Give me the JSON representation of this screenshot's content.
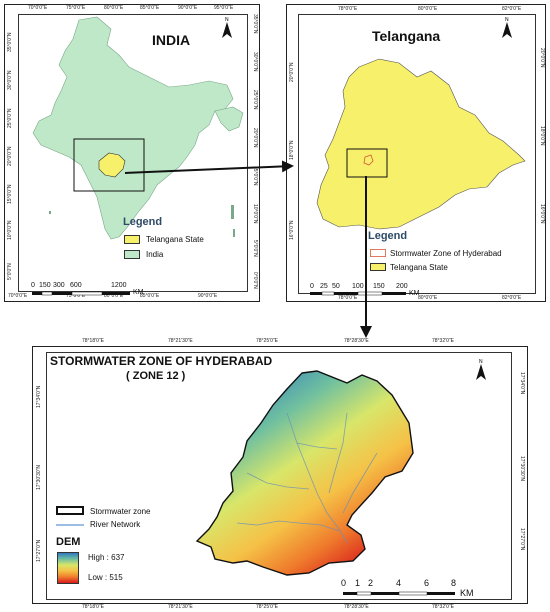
{
  "india_panel": {
    "title": "INDIA",
    "top_ticks": [
      "70°0'0\"E",
      "75°0'0\"E",
      "80°0'0\"E",
      "85°0'0\"E",
      "90°0'0\"E",
      "95°0'0\"E"
    ],
    "bottom_ticks": [
      "70°0'0\"E",
      "75°0'0\"E",
      "80°0'0\"E",
      "85°0'0\"E",
      "90°0'0\"E"
    ],
    "left_ticks": [
      "35°0'0\"N",
      "30°0'0\"N",
      "25°0'0\"N",
      "20°0'0\"N",
      "15°0'0\"N",
      "10°0'0\"N",
      "5°0'0\"N"
    ],
    "right_ticks": [
      "35°0'0\"N",
      "30°0'0\"N",
      "25°0'0\"N",
      "20°0'0\"N",
      "15°0'0\"N",
      "10°0'0\"N",
      "5°0'0\"N",
      "0°0'0\"N"
    ],
    "north": "N",
    "legend": {
      "title": "Legend",
      "items": [
        {
          "label": "Telangana State",
          "color": "#f7f06a"
        },
        {
          "label": "India",
          "color": "#bfe8c8"
        }
      ]
    },
    "scale": {
      "labels": [
        "0",
        "150",
        "300",
        "600",
        "1200"
      ],
      "unit": "KM"
    }
  },
  "telangana_panel": {
    "title": "Telangana",
    "top_ticks": [
      "78°0'0\"E",
      "80°0'0\"E",
      "82°0'0\"E"
    ],
    "bottom_ticks": [
      "78°0'0\"E",
      "80°0'0\"E",
      "82°0'0\"E"
    ],
    "left_ticks": [
      "20°0'0\"N",
      "18°0'0\"N",
      "16°0'0\"N"
    ],
    "right_ticks": [
      "20°0'0\"N",
      "18°0'0\"N",
      "16°0'0\"N"
    ],
    "north": "N",
    "legend": {
      "title": "Legend",
      "items": [
        {
          "label": "Stormwater Zone of Hyderabad",
          "color": "#ffffff",
          "border": "#e07a5f"
        },
        {
          "label": "Telangana State",
          "color": "#f7f06a"
        }
      ]
    },
    "scale": {
      "labels": [
        "0",
        "25",
        "50",
        "100",
        "150",
        "200"
      ],
      "unit": "KM"
    }
  },
  "zone_panel": {
    "title": "STORMWATER ZONE OF HYDERABAD",
    "subtitle": "( ZONE 12 )",
    "top_ticks": [
      "78°18'0\"E",
      "78°21'30\"E",
      "78°25'0\"E",
      "78°28'30\"E",
      "78°32'0\"E"
    ],
    "bottom_ticks": [
      "78°18'0\"E",
      "78°21'30\"E",
      "78°25'0\"E",
      "78°28'30\"E",
      "78°32'0\"E"
    ],
    "left_ticks": [
      "17°34'0\"N",
      "17°30'30\"N",
      "17°27'0\"N"
    ],
    "right_ticks": [
      "17°34'0\"N",
      "17°30'30\"N",
      "17°27'0\"N"
    ],
    "north": "N",
    "legend": {
      "zone_label": "Stormwater zone",
      "river_label": "River Network",
      "dem_title": "DEM",
      "high": "High : 637",
      "low": "Low : 515",
      "river_color": "#7aa8d8"
    },
    "scale": {
      "labels": [
        "0",
        "1",
        "2",
        "4",
        "6",
        "8"
      ],
      "unit": "KM"
    }
  }
}
